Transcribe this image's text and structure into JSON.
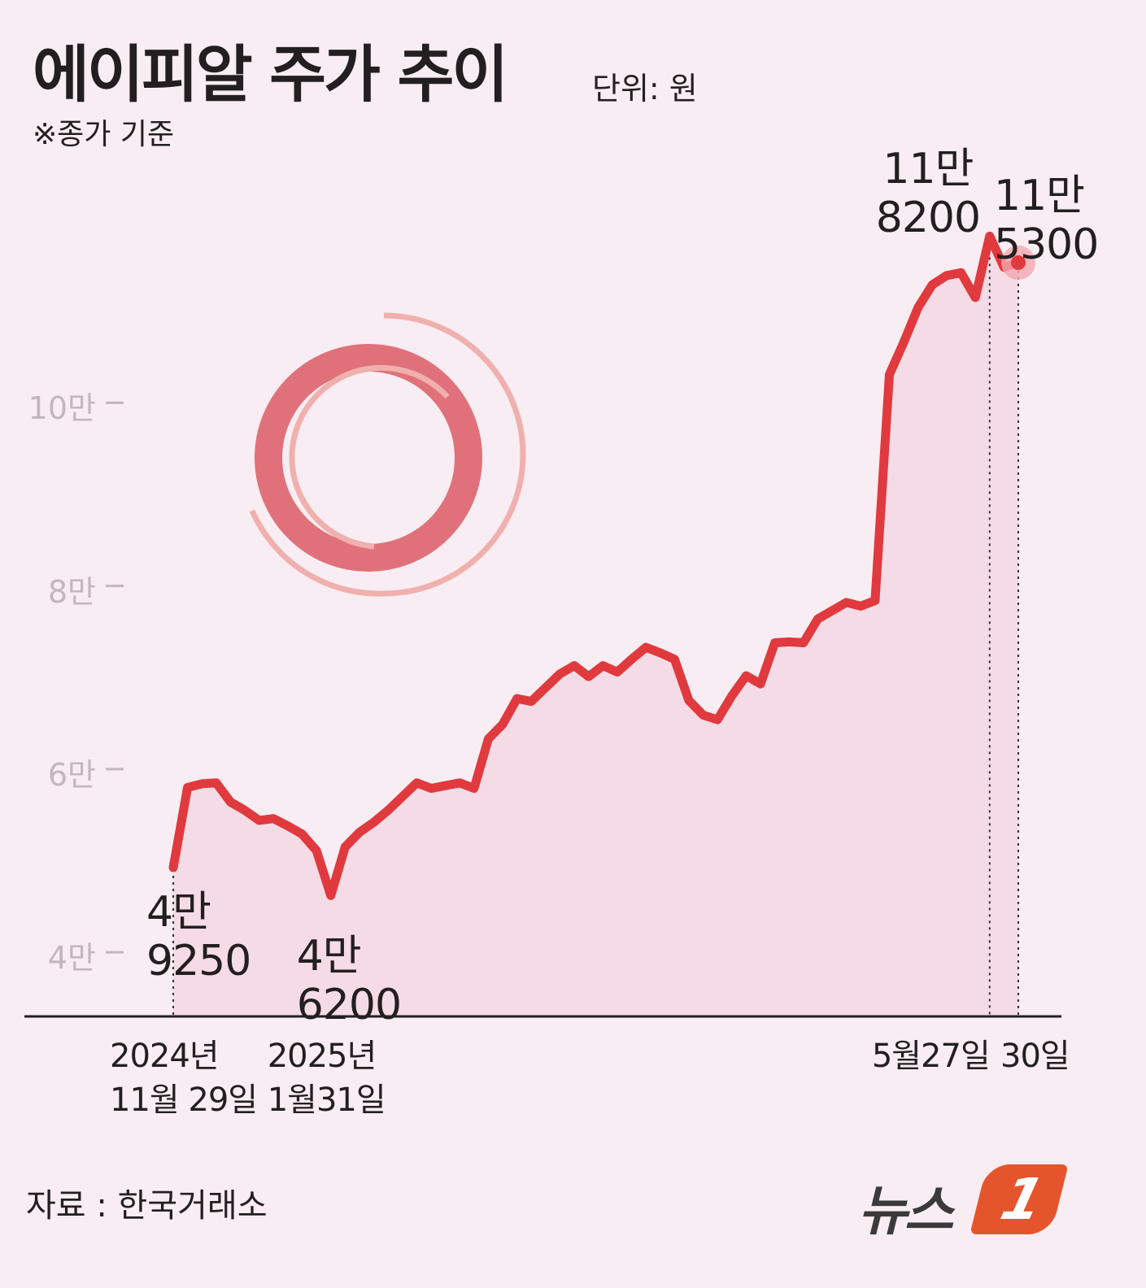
{
  "chart_data": {
    "type": "line",
    "title": "에이피알 주가 추이",
    "unit": "단위: 원",
    "note": "※종가 기준",
    "source": "자료 : 한국거래소",
    "logo": {
      "text": "뉴스",
      "mark": "1"
    },
    "categories": [
      "2024년\n11월 29일",
      null,
      null,
      null,
      null,
      null,
      null,
      null,
      null,
      null,
      null,
      "2025년\n1월31일",
      null,
      null,
      null,
      null,
      null,
      null,
      null,
      null,
      null,
      null,
      null,
      null,
      null,
      null,
      null,
      null,
      null,
      null,
      null,
      null,
      null,
      null,
      null,
      null,
      null,
      null,
      null,
      null,
      null,
      null,
      null,
      null,
      null,
      null,
      null,
      null,
      null,
      null,
      null,
      null,
      null,
      null,
      null,
      null,
      null,
      "5월27일",
      null,
      "30일"
    ],
    "series": [
      {
        "color": "#e0393e",
        "values": [
          49250,
          58000,
          58400,
          58500,
          56400,
          55500,
          54400,
          54600,
          53800,
          52900,
          51100,
          46200,
          51500,
          53100,
          54200,
          55500,
          57000,
          58500,
          57900,
          58200,
          58500,
          57900,
          63300,
          64900,
          67700,
          67400,
          68900,
          70400,
          71300,
          70100,
          71300,
          70600,
          72000,
          73300,
          72700,
          72000,
          67500,
          65900,
          65400,
          68000,
          70200,
          69300,
          73800,
          73900,
          73800,
          76400,
          77300,
          78200,
          77800,
          78400,
          103100,
          106600,
          110400,
          112900,
          113900,
          114200,
          111500,
          118200,
          114800,
          115300
        ],
        "value_labels": [
          "4만\n9250",
          null,
          null,
          null,
          null,
          null,
          null,
          null,
          null,
          null,
          null,
          "4만\n6200",
          null,
          null,
          null,
          null,
          null,
          null,
          null,
          null,
          null,
          null,
          null,
          null,
          null,
          null,
          null,
          null,
          null,
          null,
          null,
          null,
          null,
          null,
          null,
          null,
          null,
          null,
          null,
          null,
          null,
          null,
          null,
          null,
          null,
          null,
          null,
          null,
          null,
          null,
          null,
          null,
          null,
          null,
          null,
          null,
          null,
          "11만\n8200",
          null,
          "11만\n5300"
        ]
      }
    ],
    "ylim": [
      33000,
      128000
    ],
    "yticks": [
      {
        "value": 40000,
        "label": "4만"
      },
      {
        "value": 60000,
        "label": "6만"
      },
      {
        "value": 80000,
        "label": "8만"
      },
      {
        "value": 100000,
        "label": "10만"
      }
    ],
    "area_color": "#f5dbe5"
  }
}
